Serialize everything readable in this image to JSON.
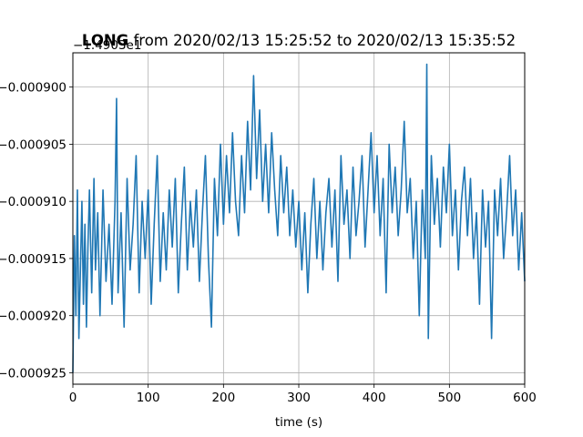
{
  "chart_data": {
    "type": "line",
    "title": {
      "bold": "LONG",
      "rest": " from 2020/02/13 15:25:52 to 2020/02/13 15:35:52"
    },
    "xlabel": "time (s)",
    "ylabel": "",
    "offset_text": "−1.4903e1",
    "xlim": [
      0,
      600
    ],
    "ylim": [
      -0.000926,
      -0.000897
    ],
    "xticks": [
      0,
      100,
      200,
      300,
      400,
      500,
      600
    ],
    "xtick_labels": [
      "0",
      "100",
      "200",
      "300",
      "400",
      "500",
      "600"
    ],
    "yticks": [
      -0.000925,
      -0.00092,
      -0.000915,
      -0.00091,
      -0.000905,
      -0.0009
    ],
    "ytick_labels": [
      "−0.000925",
      "−0.000920",
      "−0.000915",
      "−0.000910",
      "−0.000905",
      "−0.000900"
    ],
    "grid": true,
    "line_color": "#1f77b4",
    "series": [
      {
        "x": [
          0,
          2,
          4,
          6,
          8,
          10,
          12,
          14,
          16,
          18,
          20,
          22,
          25,
          28,
          30,
          33,
          36,
          40,
          44,
          48,
          52,
          56,
          58,
          60,
          64,
          68,
          72,
          76,
          80,
          84,
          88,
          92,
          96,
          100,
          104,
          108,
          112,
          116,
          120,
          124,
          128,
          132,
          136,
          140,
          144,
          148,
          152,
          156,
          160,
          164,
          168,
          172,
          176,
          180,
          184,
          188,
          192,
          196,
          200,
          204,
          208,
          212,
          216,
          220,
          224,
          228,
          232,
          236,
          240,
          244,
          248,
          252,
          256,
          260,
          264,
          268,
          272,
          276,
          280,
          284,
          288,
          292,
          296,
          300,
          304,
          308,
          312,
          316,
          320,
          324,
          328,
          332,
          336,
          340,
          344,
          348,
          352,
          356,
          360,
          364,
          368,
          372,
          376,
          380,
          384,
          388,
          392,
          396,
          400,
          404,
          408,
          412,
          416,
          420,
          424,
          428,
          432,
          436,
          440,
          444,
          448,
          452,
          456,
          460,
          464,
          468,
          470,
          472,
          476,
          480,
          484,
          488,
          492,
          496,
          500,
          504,
          508,
          512,
          516,
          520,
          524,
          528,
          532,
          536,
          540,
          544,
          548,
          552,
          556,
          560,
          564,
          568,
          572,
          576,
          580,
          584,
          588,
          592,
          596,
          600
        ],
        "y": [
          -0.000925,
          -0.000913,
          -0.00092,
          -0.000909,
          -0.000922,
          -0.000916,
          -0.00091,
          -0.000919,
          -0.000912,
          -0.000921,
          -0.000914,
          -0.000909,
          -0.000918,
          -0.000908,
          -0.000916,
          -0.000911,
          -0.00092,
          -0.000909,
          -0.000917,
          -0.000912,
          -0.000919,
          -0.00091,
          -0.000901,
          -0.000918,
          -0.000911,
          -0.000921,
          -0.000908,
          -0.000916,
          -0.000912,
          -0.000906,
          -0.000918,
          -0.00091,
          -0.000915,
          -0.000909,
          -0.000919,
          -0.000912,
          -0.000906,
          -0.000917,
          -0.000911,
          -0.000916,
          -0.000909,
          -0.000914,
          -0.000908,
          -0.000918,
          -0.000912,
          -0.000907,
          -0.000916,
          -0.00091,
          -0.000914,
          -0.000909,
          -0.000917,
          -0.000911,
          -0.000906,
          -0.000915,
          -0.000921,
          -0.000908,
          -0.000913,
          -0.000905,
          -0.000912,
          -0.000906,
          -0.000911,
          -0.000904,
          -0.00091,
          -0.000913,
          -0.000906,
          -0.000911,
          -0.000903,
          -0.000909,
          -0.000899,
          -0.000908,
          -0.000902,
          -0.00091,
          -0.000905,
          -0.000911,
          -0.000904,
          -0.000909,
          -0.000913,
          -0.000906,
          -0.000911,
          -0.000907,
          -0.000913,
          -0.000909,
          -0.000914,
          -0.00091,
          -0.000916,
          -0.000911,
          -0.000918,
          -0.000912,
          -0.000908,
          -0.000915,
          -0.00091,
          -0.000916,
          -0.000911,
          -0.000908,
          -0.000914,
          -0.000909,
          -0.000917,
          -0.000906,
          -0.000912,
          -0.000909,
          -0.000915,
          -0.000907,
          -0.000913,
          -0.00091,
          -0.000906,
          -0.000914,
          -0.000909,
          -0.000904,
          -0.000911,
          -0.000906,
          -0.000913,
          -0.000908,
          -0.000918,
          -0.000905,
          -0.000911,
          -0.000907,
          -0.000913,
          -0.000909,
          -0.000903,
          -0.000911,
          -0.000908,
          -0.000915,
          -0.00091,
          -0.00092,
          -0.000909,
          -0.000915,
          -0.000898,
          -0.000922,
          -0.000906,
          -0.000912,
          -0.000908,
          -0.000914,
          -0.000907,
          -0.000911,
          -0.000905,
          -0.000913,
          -0.000909,
          -0.000916,
          -0.00091,
          -0.000907,
          -0.000913,
          -0.000908,
          -0.000915,
          -0.000911,
          -0.000919,
          -0.000909,
          -0.000914,
          -0.00091,
          -0.000922,
          -0.000909,
          -0.000913,
          -0.000908,
          -0.000915,
          -0.000911,
          -0.000906,
          -0.000913,
          -0.000909,
          -0.000916,
          -0.000911,
          -0.000917
        ]
      }
    ]
  }
}
